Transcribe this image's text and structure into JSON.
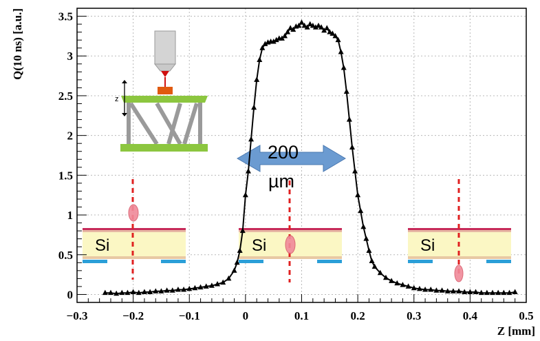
{
  "chart_data": {
    "type": "line",
    "title": "",
    "xlabel": "Z [mm]",
    "ylabel": "Q(10 ns) [a.u.]",
    "xlim": [
      -0.3,
      0.5
    ],
    "ylim": [
      -0.1,
      3.6
    ],
    "x_ticks": [
      "−0.3",
      "−0.2",
      "−0.1",
      "0",
      "0.1",
      "0.2",
      "0.3",
      "0.4",
      "0.5"
    ],
    "y_ticks": [
      "0",
      "0.5",
      "1",
      "1.5",
      "2",
      "2.5",
      "3",
      "3.5"
    ],
    "grid": true,
    "marker": "triangle",
    "color": "#000000",
    "annotations": {
      "width_label_1": "200",
      "width_label_2": "µm",
      "material_label": "Si"
    },
    "series": [
      {
        "x": [
          -0.25,
          -0.24,
          -0.23,
          -0.22,
          -0.21,
          -0.2,
          -0.19,
          -0.18,
          -0.17,
          -0.16,
          -0.15,
          -0.14,
          -0.13,
          -0.12,
          -0.11,
          -0.1,
          -0.09,
          -0.08,
          -0.07,
          -0.06,
          -0.05,
          -0.04,
          -0.03,
          -0.02,
          -0.015,
          -0.01,
          -0.005,
          0.0,
          0.005,
          0.01,
          0.015,
          0.02,
          0.025,
          0.03,
          0.035,
          0.04,
          0.045,
          0.05,
          0.055,
          0.06,
          0.065,
          0.07,
          0.075,
          0.08,
          0.085,
          0.09,
          0.095,
          0.1,
          0.105,
          0.11,
          0.115,
          0.12,
          0.125,
          0.13,
          0.135,
          0.14,
          0.145,
          0.15,
          0.155,
          0.16,
          0.165,
          0.17,
          0.175,
          0.18,
          0.185,
          0.19,
          0.195,
          0.2,
          0.205,
          0.21,
          0.215,
          0.22,
          0.225,
          0.23,
          0.24,
          0.25,
          0.26,
          0.27,
          0.28,
          0.29,
          0.3,
          0.31,
          0.32,
          0.33,
          0.34,
          0.35,
          0.36,
          0.37,
          0.38,
          0.39,
          0.4,
          0.41,
          0.42,
          0.43,
          0.44,
          0.45,
          0.46,
          0.47,
          0.48
        ],
        "y": [
          0.02,
          0.02,
          0.01,
          0.02,
          0.02,
          0.03,
          0.02,
          0.03,
          0.03,
          0.04,
          0.04,
          0.05,
          0.05,
          0.06,
          0.06,
          0.07,
          0.08,
          0.09,
          0.1,
          0.11,
          0.13,
          0.15,
          0.2,
          0.3,
          0.4,
          0.55,
          0.8,
          1.25,
          1.55,
          1.95,
          2.35,
          2.7,
          2.95,
          3.1,
          3.15,
          3.17,
          3.18,
          3.18,
          3.2,
          3.22,
          3.22,
          3.25,
          3.3,
          3.35,
          3.33,
          3.37,
          3.38,
          3.42,
          3.38,
          3.36,
          3.4,
          3.38,
          3.36,
          3.38,
          3.36,
          3.32,
          3.35,
          3.3,
          3.28,
          3.25,
          3.2,
          3.05,
          2.85,
          2.55,
          2.2,
          1.85,
          1.55,
          1.25,
          1.05,
          0.85,
          0.7,
          0.55,
          0.42,
          0.35,
          0.27,
          0.21,
          0.17,
          0.14,
          0.12,
          0.1,
          0.08,
          0.07,
          0.06,
          0.06,
          0.05,
          0.05,
          0.04,
          0.04,
          0.04,
          0.03,
          0.03,
          0.03,
          0.02,
          0.02,
          0.02,
          0.02,
          0.02,
          0.02,
          0.03
        ]
      }
    ]
  }
}
